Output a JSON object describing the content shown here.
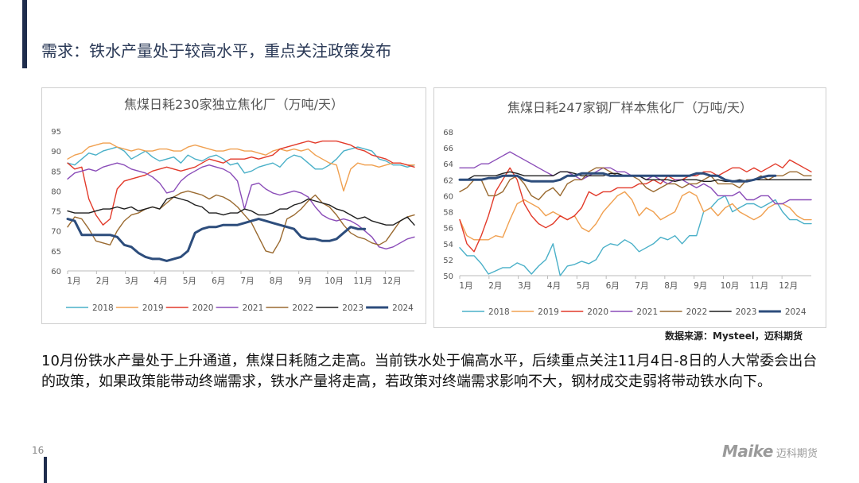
{
  "page": {
    "title": "需求：铁水产量处于较高水平，重点关注政策发布",
    "source_note": "数据来源：Mysteel，迈科期货",
    "body_text": "10月份铁水产量处于上升通道，焦煤日耗随之走高。当前铁水处于偏高水平，后续重点关注11月4日-8日的人大常委会出台的政策，如果政策能带动终端需求，铁水产量将走高，若政策对终端需求影响不大，钢材成交走弱将带动铁水向下。",
    "page_number": "16",
    "logo_text": "Maike",
    "logo_sub": "迈科期货"
  },
  "chart_data": [
    {
      "type": "line",
      "title": "焦煤日耗230家独立焦化厂（万吨/天）",
      "months": [
        "1月",
        "2月",
        "3月",
        "4月",
        "5月",
        "6月",
        "7月",
        "8月",
        "9月",
        "10月",
        "11月",
        "12月"
      ],
      "ylim": [
        60,
        95
      ],
      "yticks": [
        60,
        65,
        70,
        75,
        80,
        85,
        90,
        95
      ],
      "grid": false,
      "legend_position": "bottom",
      "series": [
        {
          "name": "2018",
          "color": "#4ab0c8",
          "width": 1.4,
          "values": [
            87.0,
            86.5,
            88.0,
            89.5,
            89.0,
            90.0,
            90.5,
            91.0,
            90.0,
            88.0,
            89.0,
            90.0,
            88.5,
            87.5,
            88.0,
            88.5,
            87.0,
            89.0,
            88.0,
            87.5,
            88.5,
            89.0,
            88.0,
            86.5,
            87.0,
            84.5,
            85.0,
            86.0,
            86.5,
            87.0,
            86.0,
            88.0,
            89.0,
            88.5,
            87.0,
            85.5,
            85.5,
            86.5,
            88.0,
            90.0,
            90.5,
            91.0,
            90.5,
            90.0,
            88.0,
            87.5,
            86.5,
            86.5,
            86.0,
            86.5
          ]
        },
        {
          "name": "2019",
          "color": "#f0a050",
          "width": 1.4,
          "values": [
            88.0,
            89.0,
            89.5,
            91.0,
            91.5,
            92.0,
            92.0,
            91.0,
            90.5,
            90.0,
            90.5,
            90.0,
            90.0,
            90.5,
            90.5,
            90.0,
            90.0,
            91.0,
            91.5,
            91.0,
            90.5,
            90.0,
            90.0,
            90.5,
            90.5,
            90.0,
            90.0,
            89.5,
            89.0,
            90.0,
            90.5,
            90.0,
            90.5,
            90.0,
            90.5,
            89.0,
            88.0,
            87.0,
            86.5,
            80.0,
            85.5,
            87.0,
            86.5,
            86.5,
            86.0,
            86.5,
            87.0,
            87.0,
            86.5,
            86.5
          ]
        },
        {
          "name": "2020",
          "color": "#e23a2a",
          "width": 1.4,
          "values": [
            87.0,
            85.5,
            86.0,
            78.0,
            74.0,
            71.5,
            73.0,
            80.5,
            82.5,
            83.0,
            83.5,
            84.0,
            85.0,
            85.5,
            86.0,
            85.5,
            85.0,
            85.5,
            86.0,
            87.0,
            88.0,
            87.5,
            87.0,
            88.0,
            88.0,
            88.0,
            88.5,
            88.0,
            88.5,
            89.0,
            90.5,
            91.0,
            91.5,
            92.0,
            92.5,
            92.0,
            92.5,
            92.5,
            92.5,
            92.0,
            91.5,
            90.5,
            90.0,
            89.0,
            88.5,
            88.0,
            87.0,
            87.0,
            86.5,
            86.0
          ]
        },
        {
          "name": "2021",
          "color": "#8a4cb8",
          "width": 1.4,
          "values": [
            83.0,
            84.5,
            85.0,
            85.5,
            85.0,
            86.0,
            86.5,
            87.0,
            86.5,
            85.5,
            85.0,
            84.5,
            83.5,
            82.0,
            79.5,
            80.0,
            82.5,
            84.0,
            85.0,
            86.0,
            86.5,
            86.0,
            85.5,
            84.5,
            82.5,
            75.5,
            81.5,
            82.0,
            80.5,
            79.5,
            79.0,
            79.5,
            80.0,
            79.5,
            78.5,
            76.0,
            74.0,
            73.0,
            72.5,
            73.0,
            72.5,
            71.5,
            70.0,
            68.5,
            66.0,
            65.5,
            66.0,
            67.0,
            68.0,
            68.5
          ]
        },
        {
          "name": "2022",
          "color": "#9a6a30",
          "width": 1.4,
          "values": [
            71.0,
            73.5,
            73.0,
            70.5,
            67.5,
            67.0,
            66.5,
            70.0,
            72.5,
            74.0,
            74.5,
            75.5,
            76.0,
            75.5,
            77.0,
            78.5,
            79.5,
            80.0,
            79.5,
            79.0,
            78.0,
            79.0,
            78.5,
            77.5,
            76.0,
            74.0,
            72.0,
            68.5,
            65.0,
            64.5,
            67.5,
            73.0,
            74.0,
            75.5,
            77.5,
            79.0,
            77.0,
            76.0,
            74.0,
            71.5,
            69.5,
            68.5,
            68.0,
            67.0,
            66.5,
            67.5,
            70.0,
            72.5,
            73.5,
            74.0
          ]
        },
        {
          "name": "2023",
          "color": "#1e1e1e",
          "width": 1.4,
          "values": [
            75.0,
            74.5,
            74.5,
            74.5,
            75.0,
            75.5,
            75.5,
            76.0,
            75.5,
            76.0,
            75.0,
            75.5,
            76.0,
            75.5,
            78.0,
            78.5,
            78.0,
            77.5,
            76.5,
            76.0,
            74.5,
            74.5,
            74.0,
            74.5,
            74.5,
            75.5,
            75.0,
            74.0,
            74.0,
            74.5,
            75.5,
            75.5,
            76.5,
            77.0,
            78.0,
            77.5,
            77.0,
            76.5,
            75.5,
            75.0,
            74.0,
            73.0,
            73.5,
            72.5,
            72.0,
            71.5,
            71.5,
            72.5,
            73.5,
            71.5
          ]
        },
        {
          "name": "2024",
          "color": "#2d4d7c",
          "width": 3.0,
          "values": [
            73.0,
            72.5,
            69.0,
            69.0,
            69.0,
            69.0,
            69.0,
            68.5,
            66.5,
            66.0,
            64.5,
            63.5,
            63.0,
            63.0,
            62.5,
            63.0,
            63.5,
            65.0,
            69.5,
            70.5,
            71.0,
            71.0,
            71.5,
            71.5,
            71.5,
            72.0,
            72.5,
            73.0,
            72.5,
            72.0,
            71.5,
            71.0,
            70.5,
            68.5,
            68.0,
            68.0,
            67.5,
            67.5,
            68.0,
            69.5,
            71.0,
            70.5,
            70.5
          ]
        }
      ]
    },
    {
      "type": "line",
      "title": "焦煤日耗247家钢厂样本焦化厂（万吨/天）",
      "months": [
        "1月",
        "2月",
        "3月",
        "4月",
        "5月",
        "6月",
        "7月",
        "8月",
        "9月",
        "10月",
        "11月",
        "12月"
      ],
      "ylim": [
        50,
        68
      ],
      "yticks": [
        50,
        52,
        54,
        56,
        58,
        60,
        62,
        64,
        66,
        68
      ],
      "grid": false,
      "legend_position": "bottom",
      "series": [
        {
          "name": "2018",
          "color": "#4ab0c8",
          "width": 1.4,
          "values": [
            53.5,
            52.5,
            52.5,
            51.5,
            50.2,
            50.6,
            51.0,
            51.0,
            51.6,
            51.2,
            50.2,
            51.2,
            52.0,
            54.0,
            50.0,
            51.2,
            51.4,
            51.8,
            51.5,
            52.0,
            53.5,
            54.0,
            53.8,
            54.5,
            54.0,
            53.0,
            53.5,
            54.0,
            54.8,
            54.5,
            55.0,
            54.0,
            55.0,
            55.0,
            58.0,
            58.5,
            59.5,
            60.0,
            58.0,
            58.5,
            59.0,
            59.0,
            58.5,
            59.0,
            59.5,
            58.0,
            57.0,
            57.0,
            56.5,
            56.5
          ]
        },
        {
          "name": "2019",
          "color": "#f0a050",
          "width": 1.4,
          "values": [
            57.0,
            55.0,
            54.5,
            54.5,
            54.5,
            55.0,
            54.8,
            57.0,
            59.0,
            59.5,
            59.0,
            58.5,
            57.5,
            58.0,
            57.5,
            57.0,
            57.5,
            56.0,
            55.5,
            56.5,
            58.0,
            59.0,
            60.0,
            60.5,
            59.5,
            57.5,
            58.5,
            58.0,
            57.0,
            57.5,
            58.0,
            60.0,
            60.5,
            60.0,
            58.0,
            58.5,
            57.5,
            58.5,
            59.0,
            58.0,
            57.5,
            57.0,
            57.5,
            58.5,
            59.0,
            59.0,
            58.5,
            57.5,
            57.0,
            57.0
          ]
        },
        {
          "name": "2020",
          "color": "#e23a2a",
          "width": 1.4,
          "values": [
            57.0,
            54.0,
            53.0,
            55.0,
            57.5,
            60.5,
            62.0,
            63.5,
            62.0,
            59.0,
            57.5,
            56.5,
            56.0,
            56.5,
            57.5,
            57.0,
            57.5,
            58.5,
            60.5,
            60.0,
            60.5,
            60.5,
            61.0,
            61.0,
            61.0,
            61.5,
            61.5,
            62.0,
            61.5,
            62.5,
            62.0,
            62.0,
            62.5,
            62.5,
            63.0,
            63.0,
            62.5,
            63.0,
            63.5,
            63.5,
            63.0,
            63.5,
            63.0,
            63.5,
            64.0,
            63.5,
            64.5,
            64.0,
            63.5,
            63.0
          ]
        },
        {
          "name": "2021",
          "color": "#8a4cb8",
          "width": 1.4,
          "values": [
            63.5,
            63.5,
            63.5,
            64.0,
            64.0,
            64.5,
            65.0,
            65.5,
            65.0,
            64.5,
            64.0,
            63.5,
            63.0,
            62.5,
            63.0,
            63.0,
            62.5,
            62.0,
            62.5,
            63.0,
            63.5,
            63.5,
            63.0,
            63.0,
            62.5,
            62.5,
            62.0,
            62.5,
            62.0,
            61.5,
            62.0,
            62.0,
            61.5,
            61.0,
            61.5,
            61.0,
            60.0,
            60.0,
            60.0,
            60.5,
            59.5,
            59.5,
            60.0,
            60.0,
            59.0,
            59.0,
            59.5,
            59.5,
            59.5,
            59.5
          ]
        },
        {
          "name": "2022",
          "color": "#9a6a30",
          "width": 1.4,
          "values": [
            60.5,
            61.0,
            62.0,
            62.0,
            60.0,
            60.0,
            60.5,
            62.0,
            62.5,
            61.5,
            60.0,
            59.5,
            60.5,
            61.0,
            60.0,
            61.5,
            62.0,
            62.0,
            63.0,
            63.5,
            63.5,
            63.0,
            62.5,
            62.5,
            62.5,
            62.0,
            61.0,
            60.5,
            61.0,
            61.5,
            61.5,
            61.0,
            61.5,
            61.5,
            62.0,
            62.5,
            61.5,
            61.5,
            61.5,
            61.0,
            62.0,
            62.0,
            62.5,
            62.0,
            62.5,
            62.5,
            63.0,
            63.0,
            62.5,
            62.5
          ]
        },
        {
          "name": "2023",
          "color": "#1e1e1e",
          "width": 1.4,
          "values": [
            62.0,
            62.0,
            62.5,
            62.5,
            62.5,
            62.5,
            62.8,
            63.0,
            62.8,
            62.5,
            62.5,
            62.5,
            62.5,
            62.5,
            63.0,
            63.0,
            62.8,
            62.5,
            62.5,
            62.5,
            62.5,
            62.8,
            62.8,
            62.5,
            62.5,
            62.5,
            62.0,
            62.0,
            62.0,
            62.0,
            61.8,
            62.0,
            62.0,
            62.0,
            61.8,
            61.8,
            62.0,
            61.8,
            61.8,
            62.0,
            61.8,
            62.0,
            62.0,
            62.0,
            62.0,
            62.0,
            62.0,
            62.0,
            62.0,
            62.0
          ]
        },
        {
          "name": "2024",
          "color": "#2d4d7c",
          "width": 3.0,
          "values": [
            62.0,
            62.0,
            62.0,
            62.0,
            62.2,
            62.2,
            62.5,
            62.5,
            62.5,
            62.0,
            61.8,
            61.8,
            61.8,
            61.8,
            62.0,
            62.5,
            62.5,
            62.8,
            62.8,
            62.8,
            62.8,
            62.5,
            62.5,
            62.5,
            62.5,
            62.5,
            62.5,
            62.5,
            62.5,
            62.5,
            62.5,
            62.5,
            62.5,
            62.8,
            62.8,
            62.5,
            62.5,
            62.0,
            61.8,
            61.8,
            61.8,
            62.0,
            62.3,
            62.5,
            62.5
          ]
        }
      ]
    }
  ]
}
